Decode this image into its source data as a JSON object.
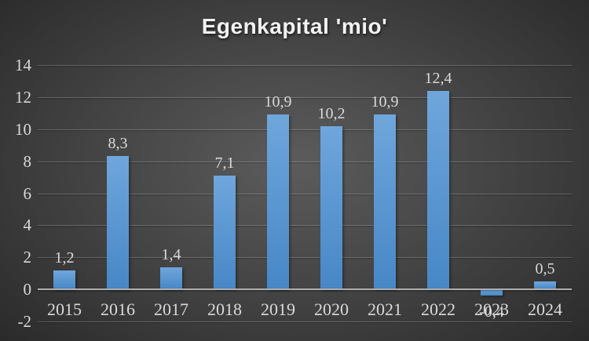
{
  "chart_data": {
    "type": "bar",
    "title": "Egenkapital 'mio'",
    "categories": [
      "2015",
      "2016",
      "2017",
      "2018",
      "2019",
      "2020",
      "2021",
      "2022",
      "2023",
      "2024"
    ],
    "values": [
      1.2,
      8.3,
      1.4,
      7.1,
      10.9,
      10.2,
      10.9,
      12.4,
      -0.4,
      0.5
    ],
    "value_labels": [
      "1,2",
      "8,3",
      "1,4",
      "7,1",
      "10,9",
      "10,2",
      "10,9",
      "12,4",
      "-0,4",
      "0,5"
    ],
    "xlabel": "",
    "ylabel": "",
    "ylim": [
      -2,
      14
    ],
    "ytick_values": [
      14,
      12,
      10,
      8,
      6,
      4,
      2,
      0,
      -2
    ],
    "ytick_labels": [
      "14",
      "12",
      "10",
      "8",
      "6",
      "4",
      "2",
      "0",
      "-2"
    ],
    "grid": true,
    "legend_position": "none",
    "data_labels_visible": true
  },
  "colors": {
    "background_center": "#5c5c5c",
    "background_mid": "#454545",
    "background_edge": "#262626",
    "bar_top": "#6fa6dc",
    "bar_bottom": "#4787c6",
    "gridline": "rgba(255,255,255,0.22)",
    "zero_line": "#aeaeae",
    "title_text": "#f2f2f2",
    "label_text": "#d9d9d9"
  }
}
